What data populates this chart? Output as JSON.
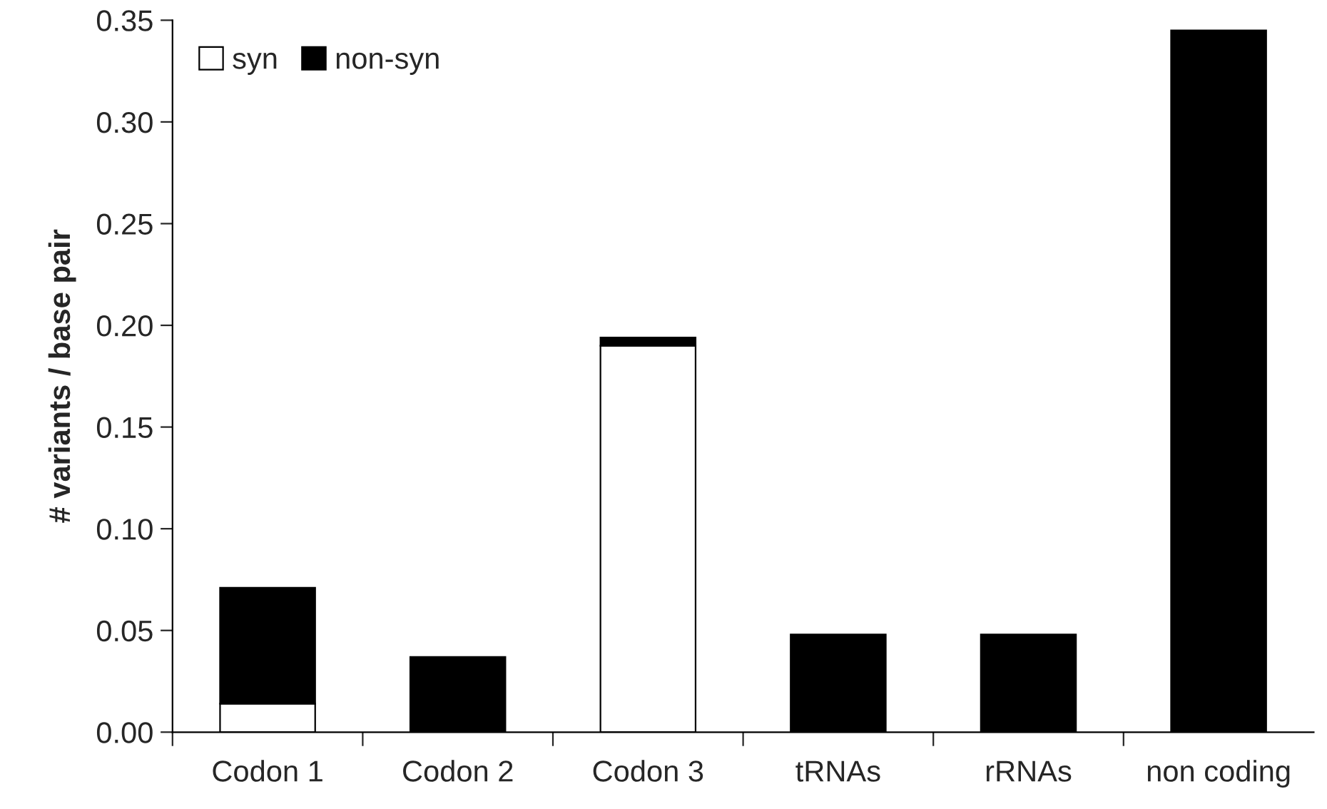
{
  "chart_data": {
    "type": "bar",
    "stacked": true,
    "ylabel": "# variants / base pair",
    "categories": [
      "Codon 1",
      "Codon 2",
      "Codon 3",
      "tRNAs",
      "rRNAs",
      "non coding"
    ],
    "series": [
      {
        "name": "syn",
        "color": "#ffffff",
        "values": [
          0.014,
          0,
          0.19,
          0,
          0,
          0
        ]
      },
      {
        "name": "non-syn",
        "color": "#000000",
        "values": [
          0.057,
          0.037,
          0.004,
          0.048,
          0.048,
          0.345
        ]
      }
    ],
    "ylim": [
      0,
      0.35
    ],
    "yticks": [
      {
        "value": 0,
        "label": "0.00"
      },
      {
        "value": 0.05,
        "label": "0.05"
      },
      {
        "value": 0.1,
        "label": "0.10"
      },
      {
        "value": 0.15,
        "label": "0.15"
      },
      {
        "value": 0.2,
        "label": "0.20"
      },
      {
        "value": 0.25,
        "label": "0.25"
      },
      {
        "value": 0.3,
        "label": "0.30"
      },
      {
        "value": 0.35,
        "label": "0.35"
      }
    ],
    "legend": "top left",
    "grid": false
  }
}
